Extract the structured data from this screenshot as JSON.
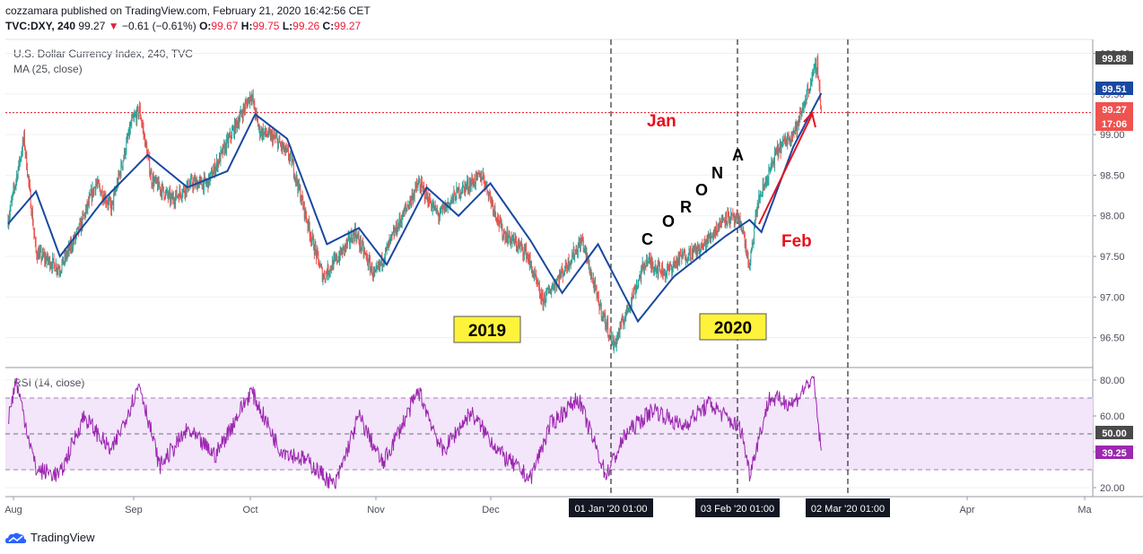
{
  "header": {
    "published": "cozzamara published on TradingView.com, February 21, 2020 16:42:56 CET",
    "symbol": "TVC:DXY, 240",
    "last": "99.27",
    "change_arrow": "▼",
    "change": "−0.61 (−0.61%)",
    "o_label": "O:",
    "o_value": "99.67",
    "h_label": "H:",
    "h_value": "99.75",
    "l_label": "L:",
    "l_value": "99.26",
    "c_label": "C:",
    "c_value": "99.27"
  },
  "main_pane": {
    "title": "U.S. Dollar Currency Index, 240, TVC",
    "ma_label": "MA (25, close)"
  },
  "rsi_pane": {
    "label": "RSI (14, close)"
  },
  "price_badges": {
    "high": "99.88",
    "ma": "99.51",
    "last": "99.27",
    "countdown": "17:06"
  },
  "rsi_badges": {
    "mid": "50.00",
    "value": "39.25"
  },
  "annotations": {
    "jan": "Jan",
    "feb": "Feb",
    "letters": [
      "C",
      "O",
      "R",
      "O",
      "N",
      "A"
    ],
    "year_2019": "2019",
    "year_2020": "2020"
  },
  "time_axis": {
    "labels": [
      "Aug",
      "Sep",
      "Oct",
      "Nov",
      "Dec",
      "Apr",
      "Ma"
    ],
    "highlight_labels": [
      "01 Jan '20   01:00",
      "03 Feb '20   01:00",
      "02 Mar '20   01:00"
    ]
  },
  "branding": {
    "logo_text": "TradingView"
  },
  "colors": {
    "up": "#26a69a",
    "down": "#ef5350",
    "ma": "#1848a0",
    "rsi": "#9c27b0",
    "rsi_band": "#f3e5fa",
    "annotation_red": "#e8101e",
    "year_box": "#fff23a",
    "last_price": "#ef5350"
  },
  "chart_data": [
    {
      "type": "candlestick",
      "title": "U.S. Dollar Currency Index, 240, TVC",
      "x_ticks": [
        "Aug",
        "Sep",
        "Oct",
        "Nov",
        "Dec",
        "01 Jan '20",
        "03 Feb '20",
        "02 Mar '20",
        "Apr",
        "Ma"
      ],
      "y_ticks": [
        96.5,
        97.0,
        97.5,
        98.0,
        98.5,
        99.0,
        99.5,
        100.0
      ],
      "ylim": [
        96.2,
        100.05
      ],
      "approx_close_path": [
        {
          "x": "2019-08-01",
          "y": 97.95
        },
        {
          "x": "2019-08-05",
          "y": 98.95
        },
        {
          "x": "2019-08-08",
          "y": 97.55
        },
        {
          "x": "2019-08-14",
          "y": 97.35
        },
        {
          "x": "2019-08-19",
          "y": 97.85
        },
        {
          "x": "2019-08-23",
          "y": 98.4
        },
        {
          "x": "2019-08-27",
          "y": 98.1
        },
        {
          "x": "2019-09-01",
          "y": 99.15
        },
        {
          "x": "2019-09-03",
          "y": 99.3
        },
        {
          "x": "2019-09-06",
          "y": 98.45
        },
        {
          "x": "2019-09-11",
          "y": 98.2
        },
        {
          "x": "2019-09-16",
          "y": 98.4
        },
        {
          "x": "2019-09-20",
          "y": 98.4
        },
        {
          "x": "2019-09-25",
          "y": 98.9
        },
        {
          "x": "2019-10-01",
          "y": 99.5
        },
        {
          "x": "2019-10-03",
          "y": 99.05
        },
        {
          "x": "2019-10-07",
          "y": 98.95
        },
        {
          "x": "2019-10-11",
          "y": 98.7
        },
        {
          "x": "2019-10-16",
          "y": 97.75
        },
        {
          "x": "2019-10-19",
          "y": 97.25
        },
        {
          "x": "2019-10-23",
          "y": 97.5
        },
        {
          "x": "2019-10-27",
          "y": 97.8
        },
        {
          "x": "2019-11-01",
          "y": 97.25
        },
        {
          "x": "2019-11-06",
          "y": 97.8
        },
        {
          "x": "2019-11-12",
          "y": 98.4
        },
        {
          "x": "2019-11-17",
          "y": 98.0
        },
        {
          "x": "2019-11-22",
          "y": 98.3
        },
        {
          "x": "2019-11-28",
          "y": 98.5
        },
        {
          "x": "2019-12-03",
          "y": 97.8
        },
        {
          "x": "2019-12-09",
          "y": 97.55
        },
        {
          "x": "2019-12-13",
          "y": 96.95
        },
        {
          "x": "2019-12-18",
          "y": 97.3
        },
        {
          "x": "2019-12-23",
          "y": 97.7
        },
        {
          "x": "2019-12-27",
          "y": 96.95
        },
        {
          "x": "2019-12-31",
          "y": 96.4
        },
        {
          "x": "2020-01-03",
          "y": 96.8
        },
        {
          "x": "2020-01-08",
          "y": 97.45
        },
        {
          "x": "2020-01-13",
          "y": 97.3
        },
        {
          "x": "2020-01-17",
          "y": 97.5
        },
        {
          "x": "2020-01-22",
          "y": 97.6
        },
        {
          "x": "2020-01-28",
          "y": 98.0
        },
        {
          "x": "2020-02-01",
          "y": 97.9
        },
        {
          "x": "2020-02-03",
          "y": 97.35
        },
        {
          "x": "2020-02-05",
          "y": 98.15
        },
        {
          "x": "2020-02-10",
          "y": 98.8
        },
        {
          "x": "2020-02-15",
          "y": 99.1
        },
        {
          "x": "2020-02-18",
          "y": 99.6
        },
        {
          "x": "2020-02-20",
          "y": 99.88
        },
        {
          "x": "2020-02-21",
          "y": 99.27
        }
      ],
      "ma_25_approx": [
        {
          "x": "2019-08-01",
          "y": 97.9
        },
        {
          "x": "2019-08-08",
          "y": 98.3
        },
        {
          "x": "2019-08-14",
          "y": 97.5
        },
        {
          "x": "2019-08-25",
          "y": 98.2
        },
        {
          "x": "2019-09-05",
          "y": 98.75
        },
        {
          "x": "2019-09-15",
          "y": 98.35
        },
        {
          "x": "2019-09-25",
          "y": 98.55
        },
        {
          "x": "2019-10-02",
          "y": 99.25
        },
        {
          "x": "2019-10-10",
          "y": 98.95
        },
        {
          "x": "2019-10-20",
          "y": 97.65
        },
        {
          "x": "2019-10-28",
          "y": 97.85
        },
        {
          "x": "2019-11-04",
          "y": 97.4
        },
        {
          "x": "2019-11-14",
          "y": 98.35
        },
        {
          "x": "2019-11-22",
          "y": 98.0
        },
        {
          "x": "2019-11-30",
          "y": 98.4
        },
        {
          "x": "2019-12-10",
          "y": 97.7
        },
        {
          "x": "2019-12-18",
          "y": 97.05
        },
        {
          "x": "2019-12-27",
          "y": 97.65
        },
        {
          "x": "2020-01-06",
          "y": 96.7
        },
        {
          "x": "2020-01-15",
          "y": 97.25
        },
        {
          "x": "2020-01-28",
          "y": 97.75
        },
        {
          "x": "2020-02-03",
          "y": 97.95
        },
        {
          "x": "2020-02-06",
          "y": 97.8
        },
        {
          "x": "2020-02-14",
          "y": 98.85
        },
        {
          "x": "2020-02-21",
          "y": 99.51
        }
      ]
    },
    {
      "type": "line",
      "title": "RSI (14, close)",
      "y_ticks": [
        20.0,
        40.0,
        60.0,
        80.0
      ],
      "ylim": [
        17.5,
        83.0
      ],
      "band": [
        30,
        70
      ],
      "midline": 50,
      "approx_path": [
        {
          "x": "2019-08-01",
          "y": 58
        },
        {
          "x": "2019-08-03",
          "y": 80
        },
        {
          "x": "2019-08-08",
          "y": 30
        },
        {
          "x": "2019-08-14",
          "y": 27
        },
        {
          "x": "2019-08-20",
          "y": 60
        },
        {
          "x": "2019-08-27",
          "y": 40
        },
        {
          "x": "2019-09-03",
          "y": 78
        },
        {
          "x": "2019-09-08",
          "y": 32
        },
        {
          "x": "2019-09-15",
          "y": 52
        },
        {
          "x": "2019-09-22",
          "y": 38
        },
        {
          "x": "2019-10-01",
          "y": 74
        },
        {
          "x": "2019-10-08",
          "y": 42
        },
        {
          "x": "2019-10-15",
          "y": 35
        },
        {
          "x": "2019-10-22",
          "y": 21
        },
        {
          "x": "2019-10-28",
          "y": 60
        },
        {
          "x": "2019-11-03",
          "y": 33
        },
        {
          "x": "2019-11-12",
          "y": 74
        },
        {
          "x": "2019-11-18",
          "y": 40
        },
        {
          "x": "2019-11-25",
          "y": 62
        },
        {
          "x": "2019-12-03",
          "y": 38
        },
        {
          "x": "2019-12-10",
          "y": 25
        },
        {
          "x": "2019-12-15",
          "y": 55
        },
        {
          "x": "2019-12-22",
          "y": 70
        },
        {
          "x": "2019-12-29",
          "y": 27
        },
        {
          "x": "2020-01-03",
          "y": 50
        },
        {
          "x": "2020-01-10",
          "y": 64
        },
        {
          "x": "2020-01-17",
          "y": 54
        },
        {
          "x": "2020-01-24",
          "y": 67
        },
        {
          "x": "2020-02-01",
          "y": 52
        },
        {
          "x": "2020-02-03",
          "y": 28
        },
        {
          "x": "2020-02-08",
          "y": 70
        },
        {
          "x": "2020-02-14",
          "y": 67
        },
        {
          "x": "2020-02-19",
          "y": 82
        },
        {
          "x": "2020-02-21",
          "y": 39.25
        }
      ]
    }
  ]
}
